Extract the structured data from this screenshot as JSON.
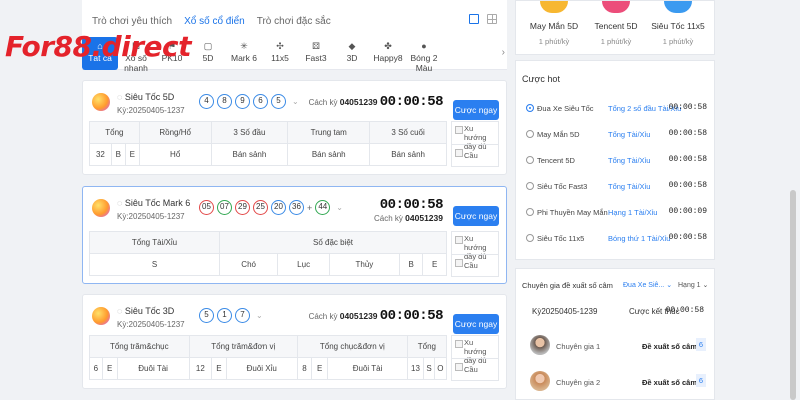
{
  "logo": {
    "text": "For88.direct"
  },
  "tabs": [
    "Trò chơi yêu thích",
    "Xổ số cổ điển",
    "Trò chơi đặc sắc"
  ],
  "game_tabs": [
    {
      "label": "Tất cả",
      "icon": "home-icon"
    },
    {
      "label": "Xổ số nhanh",
      "icon": "dice-icon"
    },
    {
      "label": "PK10",
      "icon": "flag-icon"
    },
    {
      "label": "5D",
      "icon": "dice-icon"
    },
    {
      "label": "Mark 6",
      "icon": "star-icon"
    },
    {
      "label": "11x5",
      "icon": "fan-icon"
    },
    {
      "label": "Fast3",
      "icon": "cube-icon"
    },
    {
      "label": "3D",
      "icon": "3d-icon"
    },
    {
      "label": "Happy8",
      "icon": "clover-icon"
    },
    {
      "label": "Bóng 2 Màu",
      "icon": "ball-icon"
    }
  ],
  "cards": [
    {
      "name": "Siêu Tốc 5D",
      "period": "Kỳ:20250405-1237",
      "balls": [
        "4",
        "8",
        "9",
        "6",
        "5"
      ],
      "draw_label": "Cách kỳ",
      "draw_no": "04051239",
      "timer": "00:00:58",
      "bet_label": "Cược ngay",
      "headers": [
        "Tổng",
        "Rồng/Hổ",
        "3 Số đầu",
        "Trung tam",
        "3 Số cuối"
      ],
      "values": [
        "32",
        "B",
        "E",
        "Hổ",
        "Bán sảnh",
        "Bán sảnh",
        "Bán sảnh"
      ],
      "side": [
        "Xu hướng đầy đủ",
        "Cầu"
      ]
    },
    {
      "name": "Siêu Tốc Mark 6",
      "period": "Kỳ:20250405-1237",
      "balls": [
        "05",
        "07",
        "29",
        "25",
        "20",
        "36",
        "44"
      ],
      "draw_label": "Cách kỳ",
      "draw_no": "04051239",
      "timer": "00:00:58",
      "bet_label": "Cược ngay",
      "headers": [
        "Tổng Tài/Xỉu",
        "Số đặc biệt"
      ],
      "values": [
        "S",
        "Chó",
        "Lục",
        "Thủy",
        "B",
        "E"
      ],
      "side": [
        "Xu hướng đầy đủ",
        "Cầu"
      ]
    },
    {
      "name": "Siêu Tốc 3D",
      "period": "Kỳ:20250405-1237",
      "balls": [
        "5",
        "1",
        "7"
      ],
      "draw_label": "Cách kỳ",
      "draw_no": "04051239",
      "timer": "00:00:58",
      "bet_label": "Cược ngay",
      "headers": [
        "Tổng trăm&chục",
        "Tổng trăm&đơn vị",
        "Tổng chục&đơn vị",
        "Tổng"
      ],
      "values": [
        "6",
        "E",
        "Đuôi Tài",
        "12",
        "E",
        "Đuôi Xỉu",
        "8",
        "E",
        "Đuôi Tài",
        "13",
        "S",
        "O"
      ],
      "side": [
        "Xu hướng đầy đủ",
        "Cầu"
      ]
    }
  ],
  "top_games": [
    {
      "name": "May Mắn 5D",
      "freq": "1 phút/kỳ"
    },
    {
      "name": "Tencent 5D",
      "freq": "1 phút/kỳ"
    },
    {
      "name": "Siêu Tốc 11x5",
      "freq": "1 phút/kỳ"
    }
  ],
  "hot": {
    "title": "Cược hot",
    "rows": [
      {
        "name": "Đua Xe Siêu Tốc",
        "bet": "Tổng 2 số đầu Tài/Xỉu",
        "time": "00:00:58"
      },
      {
        "name": "May Mắn 5D",
        "bet": "Tổng Tài/Xỉu",
        "time": "00:00:58"
      },
      {
        "name": "Tencent 5D",
        "bet": "Tổng Tài/Xỉu",
        "time": "00:00:58"
      },
      {
        "name": "Siêu Tốc Fast3",
        "bet": "Tổng Tài/Xỉu",
        "time": "00:00:58"
      },
      {
        "name": "Phi Thuyền May Mắn",
        "bet": "Hạng 1 Tài/Xỉu",
        "time": "00:00:09"
      },
      {
        "name": "Siêu Tốc 11x5",
        "bet": "Bóng thứ 1 Tài/Xỉu",
        "time": "00:00:58"
      }
    ]
  },
  "expert": {
    "title": "Chuyên gia đề xuất số câm",
    "select": "Đua Xe Siê...",
    "rank": "Hạng 1",
    "period": "Kỳ20250405-1239",
    "result_label": "Cược kết thúc",
    "time": "00:00:58",
    "rows": [
      {
        "name": "Chuyên gia 1",
        "label": "Đề xuất số câm:",
        "value": "6"
      },
      {
        "name": "Chuyên gia 2",
        "label": "Đề xuất số câm:",
        "value": "6"
      }
    ]
  },
  "colors": {
    "accent": "#2b7ff0",
    "logo": "#e4232b",
    "ball_blue": "#3b8be6",
    "ball_red": "#e24a4a",
    "ball_green": "#33a853"
  }
}
